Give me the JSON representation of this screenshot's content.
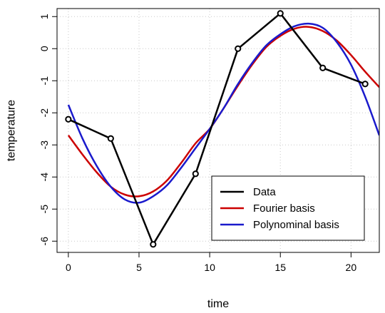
{
  "chart_data": {
    "type": "line",
    "title": "",
    "xlabel": "time",
    "ylabel": "temperature",
    "xlim": [
      -0.8,
      22
    ],
    "ylim": [
      -6.35,
      1.25
    ],
    "x_ticks": [
      "0",
      "5",
      "10",
      "15",
      "20"
    ],
    "y_ticks": [
      "1",
      "0",
      "-1",
      "-2",
      "-3",
      "-4",
      "-5",
      "-6"
    ],
    "grid": true,
    "legend_position": "bottom-right",
    "series": [
      {
        "name": "Data",
        "color": "#000000",
        "points": [
          {
            "x": 0,
            "y": -2.2
          },
          {
            "x": 3,
            "y": -2.8
          },
          {
            "x": 6,
            "y": -6.1
          },
          {
            "x": 9,
            "y": -3.9
          },
          {
            "x": 12,
            "y": 0.0
          },
          {
            "x": 15,
            "y": 1.1
          },
          {
            "x": 18,
            "y": -0.6
          },
          {
            "x": 21,
            "y": -1.1
          }
        ]
      },
      {
        "name": "Fourier basis",
        "color": "#cc0000",
        "points": [
          {
            "x": 0,
            "y": -2.7
          },
          {
            "x": 1,
            "y": -3.3
          },
          {
            "x": 2,
            "y": -3.85
          },
          {
            "x": 3,
            "y": -4.3
          },
          {
            "x": 4,
            "y": -4.55
          },
          {
            "x": 5,
            "y": -4.6
          },
          {
            "x": 6,
            "y": -4.45
          },
          {
            "x": 7,
            "y": -4.1
          },
          {
            "x": 8,
            "y": -3.55
          },
          {
            "x": 9,
            "y": -2.95
          },
          {
            "x": 10,
            "y": -2.5
          },
          {
            "x": 11,
            "y": -1.85
          },
          {
            "x": 12,
            "y": -1.15
          },
          {
            "x": 13,
            "y": -0.5
          },
          {
            "x": 14,
            "y": 0.05
          },
          {
            "x": 15,
            "y": 0.4
          },
          {
            "x": 16,
            "y": 0.62
          },
          {
            "x": 17,
            "y": 0.68
          },
          {
            "x": 18,
            "y": 0.55
          },
          {
            "x": 19,
            "y": 0.25
          },
          {
            "x": 20,
            "y": -0.2
          },
          {
            "x": 21,
            "y": -0.72
          },
          {
            "x": 22,
            "y": -1.2
          }
        ]
      },
      {
        "name": "Polynominal basis",
        "color": "#1a1acc",
        "points": [
          {
            "x": 0,
            "y": -1.75
          },
          {
            "x": 1,
            "y": -2.8
          },
          {
            "x": 2,
            "y": -3.65
          },
          {
            "x": 3,
            "y": -4.3
          },
          {
            "x": 4,
            "y": -4.7
          },
          {
            "x": 5,
            "y": -4.8
          },
          {
            "x": 6,
            "y": -4.6
          },
          {
            "x": 7,
            "y": -4.25
          },
          {
            "x": 8,
            "y": -3.7
          },
          {
            "x": 9,
            "y": -3.1
          },
          {
            "x": 10,
            "y": -2.5
          },
          {
            "x": 11,
            "y": -1.85
          },
          {
            "x": 12,
            "y": -1.1
          },
          {
            "x": 13,
            "y": -0.45
          },
          {
            "x": 14,
            "y": 0.1
          },
          {
            "x": 15,
            "y": 0.45
          },
          {
            "x": 16,
            "y": 0.7
          },
          {
            "x": 17,
            "y": 0.78
          },
          {
            "x": 18,
            "y": 0.65
          },
          {
            "x": 19,
            "y": 0.2
          },
          {
            "x": 20,
            "y": -0.5
          },
          {
            "x": 21,
            "y": -1.5
          },
          {
            "x": 22,
            "y": -2.7
          }
        ]
      }
    ]
  }
}
